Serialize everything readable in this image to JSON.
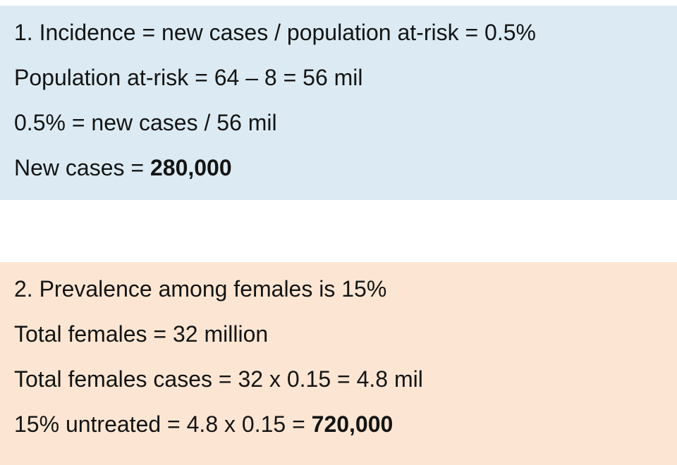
{
  "incidence_block": {
    "background": "#dcebf3",
    "line1": "1. Incidence = new cases / population at-risk = 0.5%",
    "line2": "Population at-risk = 64 – 8 = 56 mil",
    "line3": "0.5% = new cases / 56 mil",
    "line4_prefix": "New cases = ",
    "line4_value": "280,000"
  },
  "prevalence_block": {
    "background": "#fce6d3",
    "line1": "2. Prevalence among females is 15%",
    "line2": "Total females = 32 million",
    "line3": "Total females cases = 32 x 0.15 = 4.8 mil",
    "line4_prefix": "15% untreated = 4.8 x 0.15 = ",
    "line4_value": "720,000"
  },
  "colors": {
    "page_background": "#ffffff",
    "text": "#141414",
    "incidence_background": "#dcebf3",
    "prevalence_background": "#fce6d3"
  }
}
